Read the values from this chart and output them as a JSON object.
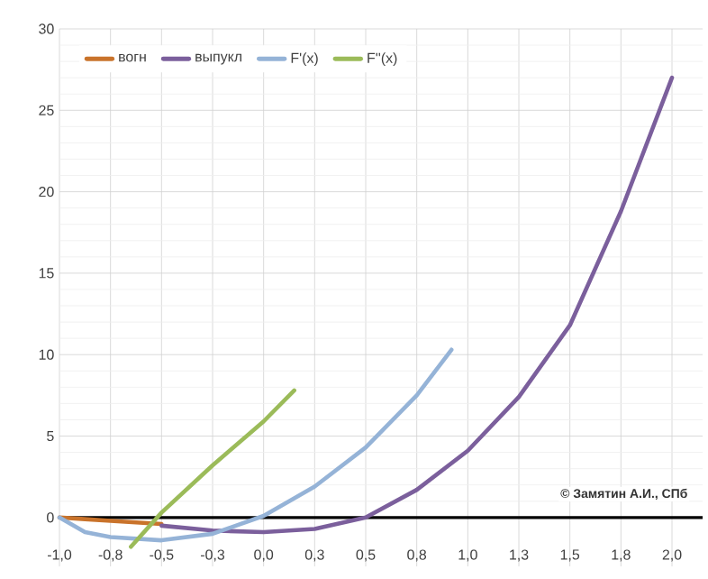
{
  "chart_data": {
    "type": "line",
    "xlim": [
      -1,
      2.15
    ],
    "ylim": [
      -3,
      30
    ],
    "xticks": [
      {
        "value": -1,
        "label": "-1,0"
      },
      {
        "value": -0.75,
        "label": "-0,8"
      },
      {
        "value": -0.5,
        "label": "-0,5"
      },
      {
        "value": -0.25,
        "label": "-0,3"
      },
      {
        "value": 0,
        "label": "0,0"
      },
      {
        "value": 0.25,
        "label": "0,3"
      },
      {
        "value": 0.5,
        "label": "0,5"
      },
      {
        "value": 0.75,
        "label": "0,8"
      },
      {
        "value": 1,
        "label": "1,0"
      },
      {
        "value": 1.25,
        "label": "1,3"
      },
      {
        "value": 1.5,
        "label": "1,5"
      },
      {
        "value": 1.75,
        "label": "1,8"
      },
      {
        "value": 2,
        "label": "2,0"
      }
    ],
    "yticks": [
      0,
      5,
      10,
      15,
      20,
      25,
      30
    ],
    "grid": true,
    "legend": "top left",
    "marker": "none",
    "series": [
      {
        "name": "вогн",
        "color": "#c9732b",
        "x": [
          -1,
          -0.875,
          -0.75,
          -0.625,
          -0.5
        ],
        "values": [
          0,
          -0.1,
          -0.2,
          -0.3,
          -0.4
        ]
      },
      {
        "name": "выпукл",
        "color": "#7b5f9c",
        "x": [
          -0.5,
          -0.25,
          0,
          0.25,
          0.5,
          0.75,
          1,
          1.25,
          1.5,
          1.75,
          2
        ],
        "values": [
          -0.5,
          -0.8,
          -0.9,
          -0.7,
          0,
          1.7,
          4.1,
          7.4,
          11.8,
          18.8,
          27
        ]
      },
      {
        "name": "F'(x)",
        "color": "#95b3d7",
        "x": [
          -1,
          -0.875,
          -0.75,
          -0.5,
          -0.25,
          0,
          0.25,
          0.5,
          0.75,
          0.92
        ],
        "values": [
          0,
          -0.9,
          -1.2,
          -1.4,
          -1.0,
          0.1,
          1.9,
          4.3,
          7.5,
          10.3
        ]
      },
      {
        "name": "F''(x)",
        "color": "#9bbb59",
        "x": [
          -0.65,
          -0.5,
          -0.25,
          0,
          0.15
        ],
        "values": [
          -1.8,
          0.3,
          3.2,
          5.9,
          7.8
        ]
      }
    ],
    "annotations": [
      "© Замятин А.И., СПб"
    ]
  }
}
